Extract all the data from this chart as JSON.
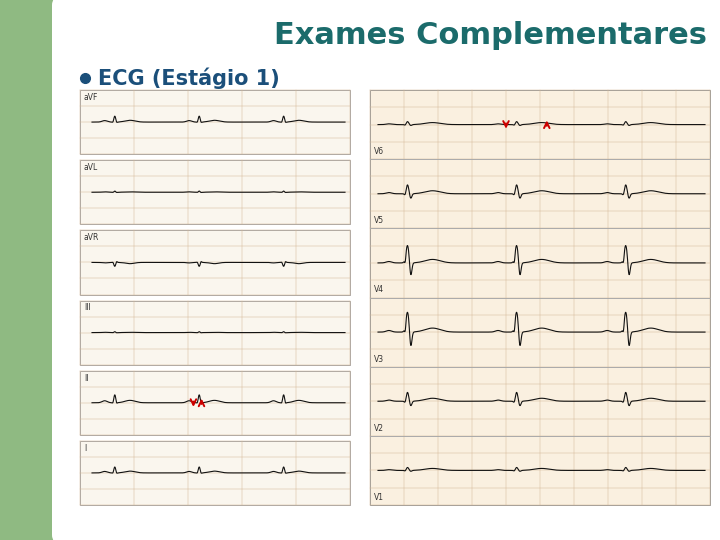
{
  "title": "Exames Complementares",
  "title_color": "#1b6b6b",
  "title_fontsize": 22,
  "title_fontweight": "bold",
  "title_fontstyle": "normal",
  "bullet_text": "ECG (Estágio 1)",
  "bullet_color": "#1b4f7a",
  "bullet_fontsize": 15,
  "bg_color": "#8fba82",
  "slide_bg": "#ffffff",
  "ecg_panel_left_labels": [
    "I",
    "II",
    "III",
    "aVR",
    "aVL",
    "aVF"
  ],
  "ecg_panel_right_labels": [
    "V1",
    "V2",
    "V3",
    "V4",
    "V5",
    "V6"
  ],
  "grid_color": "#d4b896",
  "ecg_color": "#111111",
  "arrow_color": "#cc0000",
  "left_panel_bg": "#faf6ee",
  "right_panel_bg": "#faf0e0"
}
